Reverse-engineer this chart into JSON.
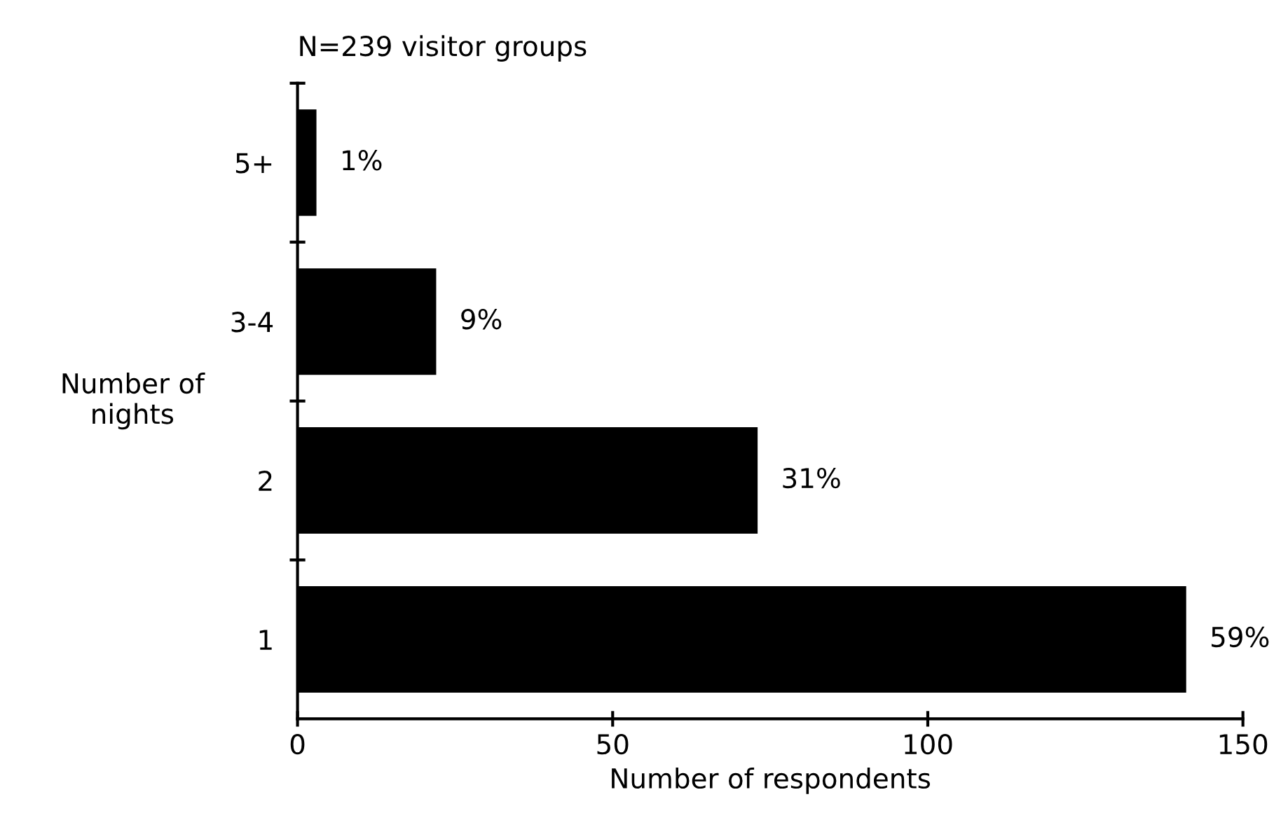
{
  "chart_data": {
    "type": "bar",
    "orientation": "horizontal",
    "title": "N=239 visitor groups",
    "categories": [
      "5+",
      "3-4",
      "2",
      "1"
    ],
    "values": [
      3,
      22,
      73,
      141
    ],
    "annotations": [
      {
        "text": "1%",
        "x": 3,
        "y": "5+"
      },
      {
        "text": "9%",
        "x": 22,
        "y": "3-4"
      },
      {
        "text": "31%",
        "x": 73,
        "y": "2"
      },
      {
        "text": "59%",
        "x": 141,
        "y": "1"
      }
    ],
    "color": "#000000",
    "xlabel": "Number of respondents",
    "ylabel": "Number of\nnights",
    "xlim": [
      0,
      150
    ],
    "xticks": [
      0,
      50,
      100,
      150
    ],
    "grid": false,
    "legend": false
  }
}
